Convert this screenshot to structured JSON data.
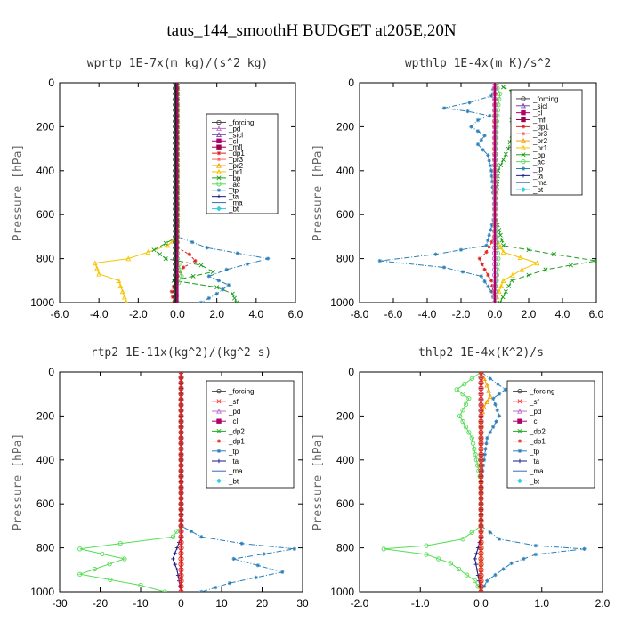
{
  "title": "taus_144_smoothH  BUDGET at205E,20N",
  "chart_data": [
    {
      "type": "line",
      "title": "wprtp   1E-7x(m kg)/(s^2 kg)",
      "ylabel": "Pressure [hPa]",
      "xlim": [
        -6,
        6
      ],
      "ylim": [
        1000,
        0
      ],
      "xticks": [
        "-6.0",
        "-4.0",
        "-2.0",
        "0.0",
        "2.0",
        "4.0",
        "6.0"
      ],
      "yticks": [
        "0",
        "200",
        "400",
        "600",
        "800",
        "1000"
      ],
      "legend": [
        "_forcing",
        "_pd",
        "_sicl",
        "_cl",
        "_mfl",
        "_dp1",
        "_pr3",
        "_pr2",
        "_pr1",
        "_bp",
        "_ac",
        "_tp",
        "_ta",
        "_ma",
        "_bt"
      ],
      "series": [
        {
          "name": "_pr1",
          "color": "#f5c400",
          "marker": "triangle",
          "dash": "",
          "points": [
            [
              0,
              0
            ],
            [
              0,
              500
            ],
            [
              0,
              700
            ],
            [
              -0.5,
              740
            ],
            [
              -2.5,
              800
            ],
            [
              -4.2,
              820
            ],
            [
              -4.0,
              870
            ],
            [
              -3.0,
              900
            ],
            [
              -2.6,
              1000
            ]
          ]
        },
        {
          "name": "_bp",
          "color": "#1a9e1a",
          "marker": "x",
          "dash": "6,3",
          "points": [
            [
              0,
              0
            ],
            [
              0,
              700
            ],
            [
              -1.2,
              760
            ],
            [
              -0.6,
              800
            ],
            [
              1.2,
              830
            ],
            [
              1.8,
              860
            ],
            [
              -0.2,
              900
            ],
            [
              2.0,
              930
            ],
            [
              2.8,
              960
            ],
            [
              3.0,
              1000
            ]
          ]
        },
        {
          "name": "_tp",
          "color": "#2a7fb8",
          "marker": "star",
          "dash": "6,2,1,2",
          "points": [
            [
              0,
              0
            ],
            [
              0,
              700
            ],
            [
              1.5,
              750
            ],
            [
              4.6,
              800
            ],
            [
              2.5,
              850
            ],
            [
              1.6,
              880
            ],
            [
              2.6,
              920
            ],
            [
              2.0,
              960
            ],
            [
              1.2,
              1000
            ]
          ]
        },
        {
          "name": "_dp1",
          "color": "#e02020",
          "marker": "star",
          "dash": "3,2",
          "points": [
            [
              0,
              0
            ],
            [
              0,
              750
            ],
            [
              0.6,
              780
            ],
            [
              0.9,
              810
            ],
            [
              0.3,
              840
            ],
            [
              0,
              880
            ],
            [
              -0.3,
              950
            ],
            [
              -0.2,
              1000
            ]
          ]
        },
        {
          "name": "_ac",
          "color": "#55dd55",
          "marker": "circle",
          "dash": "",
          "points": [
            [
              0,
              0
            ],
            [
              0,
              800
            ],
            [
              0.2,
              880
            ],
            [
              -0.1,
              940
            ],
            [
              0,
              1000
            ]
          ]
        },
        {
          "name": "_forcing",
          "color": "#222222",
          "marker": "circle",
          "dash": "",
          "points": [
            [
              -0.1,
              0
            ],
            [
              -0.1,
              200
            ],
            [
              -0.1,
              400
            ],
            [
              -0.1,
              600
            ],
            [
              -0.1,
              800
            ],
            [
              -0.1,
              1000
            ]
          ]
        },
        {
          "name": "_cl",
          "color": "#b0006a",
          "marker": "none",
          "dash": "",
          "points": [
            [
              0,
              0
            ],
            [
              0,
              1000
            ]
          ]
        }
      ]
    },
    {
      "type": "line",
      "title": "wpthlp   1E-4x(m K)/s^2",
      "ylabel": "Pressure [hPa]",
      "xlim": [
        -8,
        6
      ],
      "ylim": [
        1000,
        0
      ],
      "xticks": [
        "-8.0",
        "-6.0",
        "-4.0",
        "-2.0",
        "0.0",
        "2.0",
        "4.0",
        "6.0"
      ],
      "yticks": [
        "0",
        "200",
        "400",
        "600",
        "800",
        "1000"
      ],
      "legend": [
        "_forcing",
        "_sicl",
        "_cl",
        "_mfl",
        "_dp1",
        "_pr3",
        "_pr2",
        "_pr1",
        "_bp",
        "_ac",
        "_tp",
        "_ta",
        "_ma",
        "_bt"
      ],
      "series": [
        {
          "name": "_tp",
          "color": "#2a7fb8",
          "marker": "star",
          "dash": "6,2,1,2",
          "points": [
            [
              0,
              0
            ],
            [
              -0.2,
              60
            ],
            [
              -1.5,
              90
            ],
            [
              -3.0,
              115
            ],
            [
              -1.6,
              130
            ],
            [
              -0.3,
              150
            ],
            [
              -1.0,
              170
            ],
            [
              -1.4,
              200
            ],
            [
              -0.6,
              240
            ],
            [
              -1.0,
              280
            ],
            [
              -0.4,
              330
            ],
            [
              -0.2,
              400
            ],
            [
              0,
              600
            ],
            [
              -0.5,
              740
            ],
            [
              -3.5,
              780
            ],
            [
              -6.8,
              810
            ],
            [
              -3.0,
              840
            ],
            [
              -0.8,
              880
            ],
            [
              -0.2,
              950
            ],
            [
              0,
              1000
            ]
          ]
        },
        {
          "name": "_bp",
          "color": "#1a9e1a",
          "marker": "x",
          "dash": "6,3",
          "points": [
            [
              0,
              0
            ],
            [
              1.0,
              40
            ],
            [
              2.5,
              90
            ],
            [
              3.2,
              120
            ],
            [
              1.8,
              150
            ],
            [
              1.0,
              170
            ],
            [
              2.2,
              200
            ],
            [
              1.0,
              240
            ],
            [
              0.8,
              300
            ],
            [
              0.2,
              400
            ],
            [
              0,
              600
            ],
            [
              0.5,
              740
            ],
            [
              3.5,
              780
            ],
            [
              6.0,
              810
            ],
            [
              3.0,
              850
            ],
            [
              1.0,
              900
            ],
            [
              0.3,
              1000
            ]
          ]
        },
        {
          "name": "_pr1",
          "color": "#f5c400",
          "marker": "triangle",
          "dash": "",
          "points": [
            [
              0,
              0
            ],
            [
              0,
              700
            ],
            [
              0.5,
              770
            ],
            [
              2.5,
              820
            ],
            [
              1.6,
              850
            ],
            [
              0.5,
              900
            ],
            [
              0,
              1000
            ]
          ]
        },
        {
          "name": "_dp1",
          "color": "#e02020",
          "marker": "star",
          "dash": "3,2",
          "points": [
            [
              0,
              0
            ],
            [
              0,
              700
            ],
            [
              -0.5,
              770
            ],
            [
              -0.9,
              800
            ],
            [
              -0.6,
              850
            ],
            [
              -0.2,
              900
            ],
            [
              0,
              1000
            ]
          ]
        },
        {
          "name": "_ac",
          "color": "#55dd55",
          "marker": "circle",
          "dash": "",
          "points": [
            [
              0,
              0
            ],
            [
              0.3,
              50
            ],
            [
              0.2,
              100
            ],
            [
              0.1,
              200
            ],
            [
              0,
              600
            ],
            [
              0.2,
              800
            ],
            [
              0,
              1000
            ]
          ]
        },
        {
          "name": "_forcing",
          "color": "#c070d0",
          "marker": "circle",
          "dash": "",
          "points": [
            [
              0,
              0
            ],
            [
              0,
              200
            ],
            [
              0,
              400
            ],
            [
              0,
              600
            ],
            [
              0,
              800
            ],
            [
              0,
              1000
            ]
          ]
        },
        {
          "name": "_cl",
          "color": "#b0006a",
          "marker": "none",
          "dash": "",
          "points": [
            [
              0,
              0
            ],
            [
              0,
              1000
            ]
          ]
        }
      ]
    },
    {
      "type": "line",
      "title": "rtp2   1E-11x(kg^2)/(kg^2 s)",
      "ylabel": "Pressure [hPa]",
      "xlim": [
        -30,
        30
      ],
      "ylim": [
        1000,
        0
      ],
      "xticks": [
        "-30",
        "-20",
        "-10",
        "0",
        "10",
        "20",
        "30"
      ],
      "yticks": [
        "0",
        "200",
        "400",
        "600",
        "800",
        "1000"
      ],
      "legend": [
        "_forcing",
        "_sf",
        "_pd",
        "_cl",
        "_dp2",
        "_dp1",
        "_tp",
        "_ta",
        "_ma",
        "_bt"
      ],
      "series": [
        {
          "name": "_dp1",
          "color": "#55dd55",
          "marker": "circle",
          "dash": "",
          "points": [
            [
              0,
              0
            ],
            [
              0,
              700
            ],
            [
              -2,
              750
            ],
            [
              -15,
              780
            ],
            [
              -25,
              805
            ],
            [
              -14,
              850
            ],
            [
              -25,
              920
            ],
            [
              -10,
              970
            ],
            [
              -4,
              1000
            ]
          ]
        },
        {
          "name": "_tp",
          "color": "#2a7fb8",
          "marker": "star",
          "dash": "6,2,1,2",
          "points": [
            [
              0,
              0
            ],
            [
              0,
              700
            ],
            [
              5,
              750
            ],
            [
              15,
              780
            ],
            [
              28,
              805
            ],
            [
              13,
              850
            ],
            [
              25,
              910
            ],
            [
              12,
              960
            ],
            [
              5,
              1000
            ]
          ]
        },
        {
          "name": "_ta",
          "color": "#1a1a88",
          "marker": "plus",
          "dash": "",
          "points": [
            [
              0,
              0
            ],
            [
              0,
              750
            ],
            [
              -1,
              800
            ],
            [
              -2,
              850
            ],
            [
              -1,
              900
            ],
            [
              0,
              1000
            ]
          ]
        },
        {
          "name": "_forcing",
          "color": "#e02020",
          "marker": "circle",
          "dash": "",
          "points": [
            [
              0,
              0
            ],
            [
              0,
              200
            ],
            [
              0,
              400
            ],
            [
              0,
              600
            ],
            [
              0,
              800
            ],
            [
              0,
              1000
            ]
          ]
        }
      ]
    },
    {
      "type": "line",
      "title": "thlp2   1E-4x(K^2)/s",
      "ylabel": "Pressure [hPa]",
      "xlim": [
        -2,
        2
      ],
      "ylim": [
        1000,
        0
      ],
      "xticks": [
        "-2.0",
        "-1.0",
        "0.0",
        "1.0",
        "2.0"
      ],
      "yticks": [
        "0",
        "200",
        "400",
        "600",
        "800",
        "1000"
      ],
      "legend": [
        "_forcing",
        "_sf",
        "_pd",
        "_cl",
        "_dp2",
        "_dp1",
        "_tp",
        "_ta",
        "_ma",
        "_bt"
      ],
      "series": [
        {
          "name": "_dp1",
          "color": "#55dd55",
          "marker": "circle",
          "dash": "",
          "points": [
            [
              0,
              0
            ],
            [
              -0.15,
              30
            ],
            [
              -0.4,
              80
            ],
            [
              -0.2,
              120
            ],
            [
              -0.35,
              200
            ],
            [
              -0.15,
              300
            ],
            [
              0,
              500
            ],
            [
              0,
              700
            ],
            [
              -0.3,
              760
            ],
            [
              -0.9,
              790
            ],
            [
              -1.6,
              805
            ],
            [
              -0.9,
              830
            ],
            [
              -0.5,
              870
            ],
            [
              -0.1,
              950
            ],
            [
              0,
              1000
            ]
          ]
        },
        {
          "name": "_tp",
          "color": "#2a7fb8",
          "marker": "star",
          "dash": "6,2,1,2",
          "points": [
            [
              0,
              0
            ],
            [
              0.15,
              30
            ],
            [
              0.4,
              80
            ],
            [
              0.2,
              120
            ],
            [
              0.3,
              200
            ],
            [
              0.1,
              300
            ],
            [
              0,
              500
            ],
            [
              0,
              700
            ],
            [
              0.3,
              760
            ],
            [
              0.9,
              790
            ],
            [
              1.7,
              805
            ],
            [
              0.9,
              830
            ],
            [
              0.5,
              870
            ],
            [
              0.1,
              950
            ],
            [
              0,
              1000
            ]
          ]
        },
        {
          "name": "_pd",
          "color": "#f5a000",
          "marker": "triangle",
          "dash": "",
          "points": [
            [
              0,
              0
            ],
            [
              0.1,
              60
            ],
            [
              0.15,
              110
            ],
            [
              0.05,
              160
            ],
            [
              0,
              200
            ],
            [
              0,
              1000
            ]
          ]
        },
        {
          "name": "_ta",
          "color": "#1a1a88",
          "marker": "plus",
          "dash": "",
          "points": [
            [
              0,
              0
            ],
            [
              0,
              750
            ],
            [
              -0.05,
              800
            ],
            [
              -0.1,
              850
            ],
            [
              0,
              1000
            ]
          ]
        },
        {
          "name": "_forcing",
          "color": "#e02020",
          "marker": "circle",
          "dash": "",
          "points": [
            [
              0,
              0
            ],
            [
              0,
              200
            ],
            [
              0,
              400
            ],
            [
              0,
              600
            ],
            [
              0,
              800
            ],
            [
              0,
              1000
            ]
          ]
        }
      ]
    }
  ]
}
